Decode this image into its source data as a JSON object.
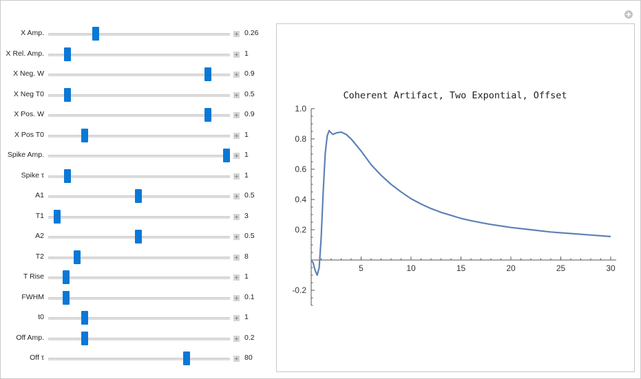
{
  "controls": [
    {
      "label": "X Amp.",
      "value": "0.26",
      "position": 0.26
    },
    {
      "label": "X Rel. Amp.",
      "value": "1",
      "position": 0.105
    },
    {
      "label": "X Neg. W",
      "value": "0.9",
      "position": 0.88
    },
    {
      "label": "X Neg T0",
      "value": "0.5",
      "position": 0.105
    },
    {
      "label": "X Pos. W",
      "value": "0.9",
      "position": 0.88
    },
    {
      "label": "X Pos T0",
      "value": "1",
      "position": 0.2
    },
    {
      "label": "Spike Amp.",
      "value": "1",
      "position": 0.98
    },
    {
      "label": "Spike τ",
      "value": "1",
      "position": 0.105
    },
    {
      "label": "A1",
      "value": "0.5",
      "position": 0.495
    },
    {
      "label": "T1",
      "value": "3",
      "position": 0.048
    },
    {
      "label": "A2",
      "value": "0.5",
      "position": 0.495
    },
    {
      "label": "T2",
      "value": "8",
      "position": 0.16
    },
    {
      "label": "T Rise",
      "value": "1",
      "position": 0.098
    },
    {
      "label": "FWHM",
      "value": "0.1",
      "position": 0.098
    },
    {
      "label": "t0",
      "value": "1",
      "position": 0.2
    },
    {
      "label": "Off Amp.",
      "value": "0.2",
      "position": 0.2
    },
    {
      "label": "Off τ",
      "value": "80",
      "position": 0.76
    }
  ],
  "chart_data": {
    "type": "line",
    "title": "Coherent Artifact, Two Expontial, Offset",
    "xlim": [
      0,
      30
    ],
    "ylim": [
      -0.3,
      1.0
    ],
    "xticks": [
      5,
      10,
      15,
      20,
      25,
      30
    ],
    "yticks": [
      1.0,
      0.8,
      0.6,
      0.4,
      0.2,
      -0.2
    ],
    "ytick_labels": [
      "1.0",
      "0.8",
      "0.6",
      "0.4",
      "0.2",
      "-0.2"
    ],
    "color": "#5e81b5",
    "series": [
      {
        "x": [
          0,
          0.2,
          0.4,
          0.6,
          0.8,
          1.0,
          1.2,
          1.4,
          1.6,
          1.8,
          2.0,
          2.2,
          2.5,
          3.0,
          3.5,
          4,
          5,
          6,
          7,
          8,
          9,
          10,
          11,
          12,
          13,
          14,
          15,
          16,
          17,
          18,
          19,
          20,
          22,
          24,
          26,
          28,
          30
        ],
        "y": [
          0,
          -0.02,
          -0.07,
          -0.1,
          -0.05,
          0.15,
          0.45,
          0.7,
          0.82,
          0.855,
          0.84,
          0.83,
          0.84,
          0.845,
          0.83,
          0.8,
          0.72,
          0.63,
          0.56,
          0.5,
          0.45,
          0.405,
          0.37,
          0.34,
          0.315,
          0.295,
          0.275,
          0.26,
          0.247,
          0.235,
          0.225,
          0.215,
          0.2,
          0.185,
          0.175,
          0.165,
          0.155
        ]
      }
    ]
  }
}
